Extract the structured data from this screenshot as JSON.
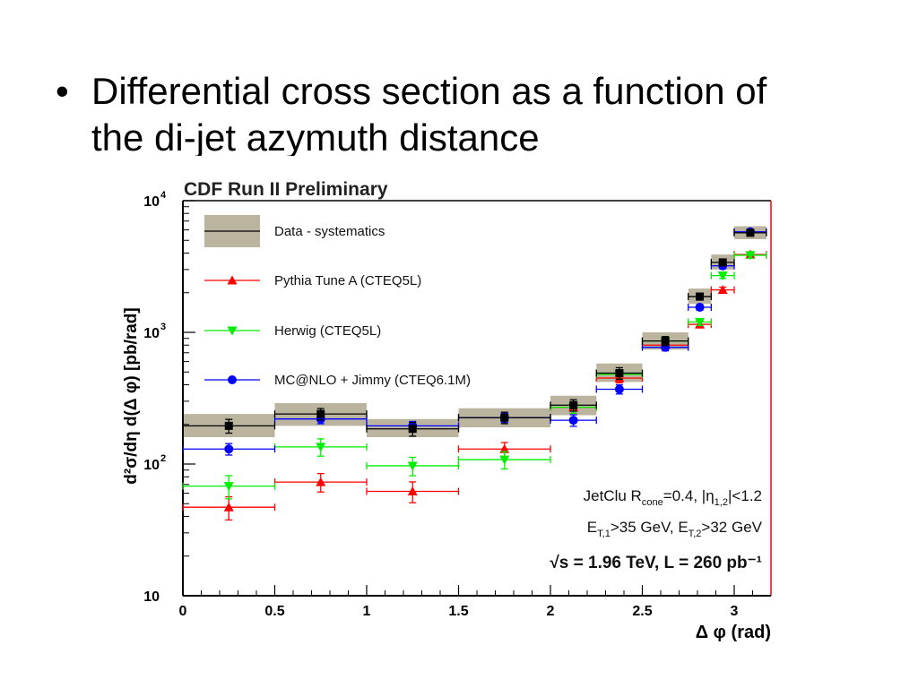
{
  "slide": {
    "bullet": "•",
    "line1": "Differential cross section as a function of",
    "line2": "the di-jet azymuth distance"
  },
  "colors": {
    "band": "#bbb5a0",
    "data": "#000000",
    "pythia": "#ff0000",
    "herwig": "#00ee00",
    "mcnlo": "#0000ff",
    "frame": "#000000",
    "frame_right": "#ff0000"
  },
  "chart_data": {
    "type": "scatter",
    "title": "CDF Run II Preliminary",
    "xlabel": "Δ φ (rad)",
    "ylabel": "d²σ/dη d(Δ φ) [pb/rad]",
    "xlim": [
      0,
      3.2
    ],
    "ylim": [
      10,
      10000
    ],
    "yscale": "log",
    "grid": false,
    "legend_position": "top-left",
    "x_ticks": [
      {
        "label": "0",
        "value": 0
      },
      {
        "label": "0.5",
        "value": 0.5
      },
      {
        "label": "1",
        "value": 1
      },
      {
        "label": "1.5",
        "value": 1.5
      },
      {
        "label": "2",
        "value": 2
      },
      {
        "label": "2.5",
        "value": 2.5
      },
      {
        "label": "3",
        "value": 3
      }
    ],
    "y_ticks": [
      {
        "base": "10",
        "exp": "",
        "value": 10
      },
      {
        "base": "10",
        "exp": "2",
        "value": 100
      },
      {
        "base": "10",
        "exp": "3",
        "value": 1000
      },
      {
        "base": "10",
        "exp": "4",
        "value": 10000
      }
    ],
    "annotations": [
      "JetClu R_cone=0.4, |η_1,2|<1.2",
      "E_T,1>35 GeV, E_T,2>32 GeV",
      "√s = 1.96 TeV, L = 260 pb⁻¹"
    ],
    "series": [
      {
        "name": "Data - systematics",
        "marker": "square",
        "color": "#000000",
        "x": [
          0.25,
          0.75,
          1.25,
          1.75,
          2.125,
          2.375,
          2.625,
          2.8125,
          2.9375,
          3.0875
        ],
        "xerr": [
          0.25,
          0.25,
          0.25,
          0.25,
          0.125,
          0.125,
          0.125,
          0.0625,
          0.0625,
          0.0875
        ],
        "y": [
          195,
          240,
          185,
          225,
          280,
          490,
          860,
          1870,
          3400,
          5700
        ],
        "yerr_frac": [
          0.12,
          0.1,
          0.12,
          0.1,
          0.1,
          0.1,
          0.08,
          0.06,
          0.06,
          0.05
        ],
        "band_low": [
          160,
          195,
          160,
          190,
          235,
          420,
          740,
          1650,
          3000,
          5100
        ],
        "band_high": [
          240,
          290,
          220,
          265,
          330,
          580,
          1000,
          2150,
          3900,
          6400
        ]
      },
      {
        "name": "Pythia Tune A (CTEQ5L)",
        "marker": "triangle-up",
        "color": "#ff0000",
        "x": [
          0.25,
          0.75,
          1.25,
          1.75,
          2.125,
          2.375,
          2.625,
          2.8125,
          2.9375,
          3.0875
        ],
        "xerr": [
          0.25,
          0.25,
          0.25,
          0.25,
          0.125,
          0.125,
          0.125,
          0.0625,
          0.0625,
          0.0875
        ],
        "y": [
          47,
          73,
          62,
          130,
          270,
          450,
          800,
          1150,
          2100,
          3900
        ],
        "yerr_frac": [
          0.2,
          0.16,
          0.18,
          0.12,
          0.1,
          0.08,
          0.07,
          0.06,
          0.05,
          0.05
        ]
      },
      {
        "name": "Herwig (CTEQ5L)",
        "marker": "triangle-down",
        "color": "#00ee00",
        "x": [
          0.25,
          0.75,
          1.25,
          1.75,
          2.125,
          2.375,
          2.625,
          2.8125,
          2.9375,
          3.0875
        ],
        "xerr": [
          0.25,
          0.25,
          0.25,
          0.25,
          0.125,
          0.125,
          0.125,
          0.0625,
          0.0625,
          0.0875
        ],
        "y": [
          68,
          135,
          97,
          108,
          270,
          480,
          860,
          1200,
          2700,
          3850
        ],
        "yerr_frac": [
          0.2,
          0.15,
          0.16,
          0.15,
          0.1,
          0.08,
          0.07,
          0.06,
          0.05,
          0.05
        ]
      },
      {
        "name": "MC@NLO + Jimmy (CTEQ6.1M)",
        "marker": "circle",
        "color": "#0000ff",
        "x": [
          0.25,
          0.75,
          1.25,
          1.75,
          2.125,
          2.375,
          2.625,
          2.8125,
          2.9375,
          3.0875
        ],
        "xerr": [
          0.25,
          0.25,
          0.25,
          0.25,
          0.125,
          0.125,
          0.125,
          0.0625,
          0.0625,
          0.0875
        ],
        "y": [
          130,
          220,
          195,
          225,
          215,
          370,
          770,
          1550,
          3200,
          5800
        ],
        "yerr_frac": [
          0.1,
          0.08,
          0.08,
          0.08,
          0.1,
          0.08,
          0.06,
          0.05,
          0.05,
          0.04
        ]
      }
    ]
  }
}
